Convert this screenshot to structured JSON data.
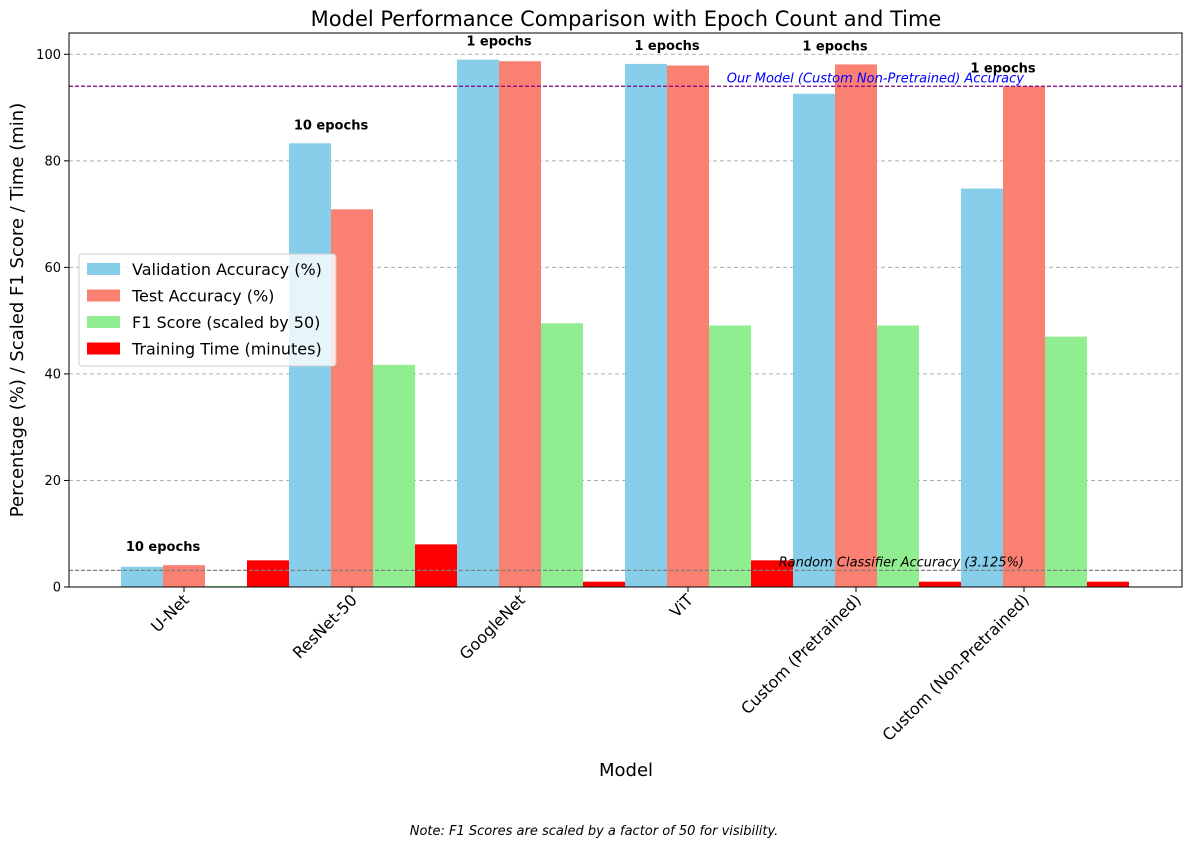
{
  "chart_data": {
    "type": "bar",
    "title": "Model Performance Comparison with Epoch Count and Time",
    "xlabel": "Model",
    "ylabel": "Percentage (%) / Scaled F1 Score / Time (min)",
    "ylim": [
      0,
      104
    ],
    "yticks": [
      0,
      20,
      40,
      60,
      80,
      100
    ],
    "grid": "y-dashed",
    "legend_position": "center-left",
    "categories": [
      "U-Net",
      "ResNet-50",
      "GoogleNet",
      "ViT",
      "Custom (Pretrained)",
      "Custom (Non-Pretrained)"
    ],
    "series": [
      {
        "name": "Validation Accuracy (%)",
        "color": "#87ceeb",
        "values": [
          3.8,
          83.3,
          99.0,
          98.2,
          92.6,
          74.8
        ]
      },
      {
        "name": "Test Accuracy (%)",
        "color": "#fa8072",
        "values": [
          4.1,
          70.9,
          98.7,
          97.9,
          98.1,
          94.0
        ]
      },
      {
        "name": "F1 Score (scaled by 50)",
        "color": "#90ee90",
        "values": [
          0.2,
          41.7,
          49.5,
          49.1,
          49.1,
          47.0
        ]
      },
      {
        "name": "Training Time (minutes)",
        "color": "#ff0000",
        "values": [
          5.0,
          8.0,
          1.0,
          5.0,
          1.0,
          1.0
        ]
      }
    ],
    "epoch_labels": [
      "10 epochs",
      "10 epochs",
      "1 epochs",
      "1 epochs",
      "1 epochs",
      "1 epochs"
    ],
    "reference_lines": [
      {
        "label": "Our Model (Custom Non-Pretrained) Accuracy",
        "value": 94.0,
        "color": "#800080",
        "text_color": "#0000ff"
      },
      {
        "label": "Random Classifier Accuracy (3.125%)",
        "value": 3.125,
        "color": "#808080",
        "text_color": "#000000"
      }
    ],
    "note": "Note: F1 Scores are scaled by a factor of 50 for visibility."
  }
}
